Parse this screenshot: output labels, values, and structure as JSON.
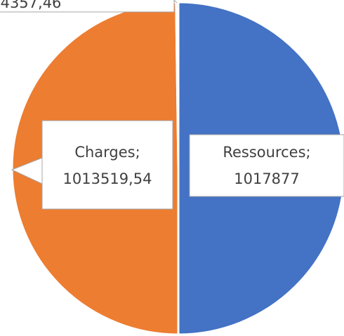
{
  "chart_data": {
    "type": "pie",
    "categories": [
      "Ressources",
      "Charges",
      null
    ],
    "values": [
      1017877,
      1013519.54,
      4357.46
    ],
    "value_labels": [
      "1017877",
      "1013519,54",
      "4357,46"
    ],
    "label_separator": ";",
    "colors": [
      "#4472c4",
      "#ed7d31",
      "#a5a5a5"
    ]
  }
}
